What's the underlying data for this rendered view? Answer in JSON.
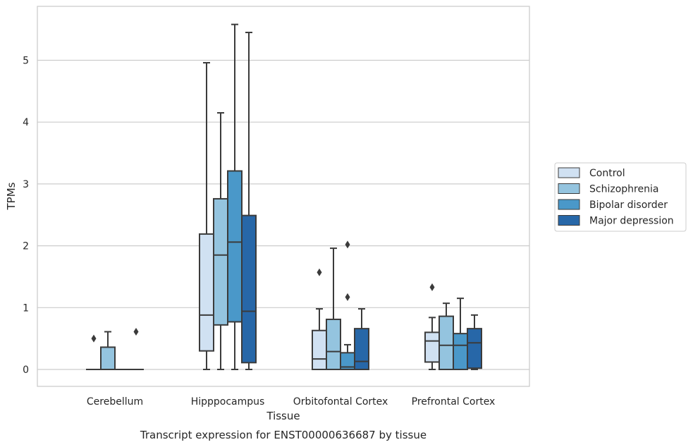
{
  "chart_data": {
    "type": "box",
    "caption": "Transcript expression for ENST00000636687 by tissue",
    "xlabel": "Tissue",
    "ylabel": "TPMs",
    "ylim": [
      -0.28,
      5.95
    ],
    "yticks": [
      0,
      1,
      2,
      3,
      4,
      5
    ],
    "grid": true,
    "legend_position": "right",
    "categories": [
      "Cerebellum",
      "Hipppocampus",
      "Orbitofontal Cortex",
      "Prefrontal Cortex"
    ],
    "series": [
      {
        "name": "Control",
        "color": "#d0e1f2",
        "boxes": [
          {
            "q1": 0,
            "median": 0,
            "q3": 0,
            "whisker_low": 0,
            "whisker_high": 0,
            "outliers": [
              0.5
            ]
          },
          {
            "q1": 0.3,
            "median": 0.88,
            "q3": 2.19,
            "whisker_low": 0,
            "whisker_high": 4.96,
            "outliers": []
          },
          {
            "q1": 0,
            "median": 0.17,
            "q3": 0.63,
            "whisker_low": 0,
            "whisker_high": 0.98,
            "outliers": [
              1.57
            ]
          },
          {
            "q1": 0.12,
            "median": 0.46,
            "q3": 0.6,
            "whisker_low": 0,
            "whisker_high": 0.84,
            "outliers": [
              1.33
            ]
          }
        ]
      },
      {
        "name": "Schizophrenia",
        "color": "#94c4df",
        "boxes": [
          {
            "q1": 0,
            "median": 0,
            "q3": 0.36,
            "whisker_low": 0,
            "whisker_high": 0.61,
            "outliers": []
          },
          {
            "q1": 0.72,
            "median": 1.85,
            "q3": 2.76,
            "whisker_low": 0,
            "whisker_high": 4.15,
            "outliers": []
          },
          {
            "q1": 0,
            "median": 0.29,
            "q3": 0.81,
            "whisker_low": 0,
            "whisker_high": 1.96,
            "outliers": []
          },
          {
            "q1": 0,
            "median": 0.39,
            "q3": 0.86,
            "whisker_low": 0,
            "whisker_high": 1.07,
            "outliers": []
          }
        ]
      },
      {
        "name": "Bipolar disorder",
        "color": "#4a98c9",
        "boxes": [
          {
            "q1": 0,
            "median": 0,
            "q3": 0,
            "whisker_low": 0,
            "whisker_high": 0,
            "outliers": []
          },
          {
            "q1": 0.77,
            "median": 2.06,
            "q3": 3.21,
            "whisker_low": 0,
            "whisker_high": 5.58,
            "outliers": []
          },
          {
            "q1": 0,
            "median": 0.04,
            "q3": 0.27,
            "whisker_low": 0,
            "whisker_high": 0.4,
            "outliers": [
              1.17,
              2.02
            ]
          },
          {
            "q1": 0,
            "median": 0.39,
            "q3": 0.58,
            "whisker_low": 0,
            "whisker_high": 1.15,
            "outliers": []
          }
        ]
      },
      {
        "name": "Major depression",
        "color": "#2767a8",
        "boxes": [
          {
            "q1": 0,
            "median": 0,
            "q3": 0,
            "whisker_low": 0,
            "whisker_high": 0,
            "outliers": [
              0.61
            ]
          },
          {
            "q1": 0.11,
            "median": 0.94,
            "q3": 2.49,
            "whisker_low": 0,
            "whisker_high": 5.45,
            "outliers": []
          },
          {
            "q1": 0,
            "median": 0.13,
            "q3": 0.66,
            "whisker_low": 0,
            "whisker_high": 0.98,
            "outliers": []
          },
          {
            "q1": 0.02,
            "median": 0.43,
            "q3": 0.66,
            "whisker_low": 0,
            "whisker_high": 0.88,
            "outliers": []
          }
        ]
      }
    ]
  }
}
